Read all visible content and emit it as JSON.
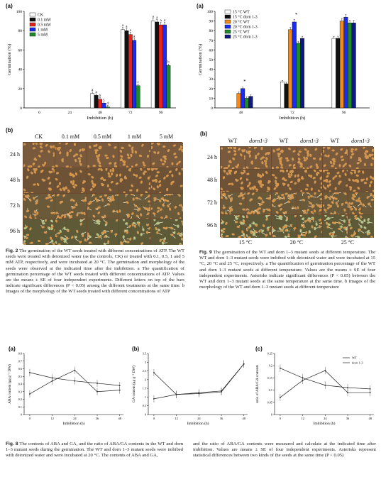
{
  "fig2": {
    "panel_a_label": "(a)",
    "panel_b_label": "(b)",
    "photo_cols": [
      "CK",
      "0.1 mM",
      "0.5 mM",
      "1 mM",
      "5 mM"
    ],
    "photo_rows": [
      "24 h",
      "48 h",
      "72 h",
      "96 h"
    ],
    "caption": {
      "title": "Fig. 2",
      "text": "The germination of the WT seeds treated with different concentrations of ATP. The WT seeds were treated with deionized water (as the controls, CK) or treated with 0.1, 0.5, 1 and 5 mM ATP, respectively, and were incubated at 20 °C. The germination and morphology of the seeds were observed at the indicated time after the imbibition. a The quantification of germination percentage of the WT seeds treated with different concentrations of ATP. Values are the means ± SE of four independent experiments. Different letters on top of the bars indicate significant differences (P < 0.05) among the different treatments at the same time. b Images of the morphology of the WT seeds treated with different concentrations of ATP"
    }
  },
  "fig9": {
    "panel_a_label": "(a)",
    "panel_b_label": "(b)",
    "photo_cols": [
      "WT",
      "dorn1-3",
      "WT",
      "dorn1-3",
      "WT",
      "dorn1-3"
    ],
    "photo_rows": [
      "24 h",
      "48 h",
      "72 h",
      "96 h"
    ],
    "temp_labels": [
      "15 °C",
      "20 °C",
      "25 °C"
    ],
    "caption": {
      "title": "Fig. 9",
      "text": "The germination of the WT and dorn 1–3 mutant seeds at different temperature. The WT and dorn 1–3 mutant seeds were imbibed with deionized water and were incubated at 15 °C, 20 °C and 25 °C, respectively. a The quantification of germination percentage of the WT and dorn 1–3 mutant seeds at different temperature. Values are the means ± SE of four independent experiments. Asterisks indicate significant differences (P < 0.05) between the WT and dorn 1–3 mutant seeds at the same temperature at the same time. b Images of the morphology of the WT and dorn 1–3 mutant seeds at different temperature"
    }
  },
  "fig8": {
    "panel_labels": [
      "(a)",
      "(b)",
      "(c)"
    ],
    "caption": {
      "title": "Fig. 8",
      "left": "The contents of ABA and GA, and the ratio of ABA/GA contents in the WT and dorn 1–3 mutant seeds during the germination. The WT and dorn 1–3 mutant seeds were imbibed with deionized water and were incubated at 20 °C. The contents of ABA and GA,",
      "right": "and the ratio of ABA/GA contents were measured and calculate at the indicated time after imbibition. Values are means ± SE of four independent experiments. Asterisks represent statistical differences between two kinds of the seeds at the same time (P < 0.05)"
    }
  },
  "chart_data": [
    {
      "id": "fig2a",
      "type": "bar",
      "xlabel": "Imbibition (h)",
      "ylabel": "Germination (%)",
      "ylim": [
        0,
        100
      ],
      "yticks": [
        0,
        20,
        40,
        60,
        80,
        100
      ],
      "categories": [
        "0",
        "24",
        "48",
        "72",
        "96"
      ],
      "legend_position": "top-left",
      "series": [
        {
          "name": "CK",
          "color": "#ffffff",
          "values": [
            0,
            0,
            15,
            81,
            90
          ],
          "letters": [
            "",
            "",
            "a",
            "a",
            "a"
          ]
        },
        {
          "name": "0.1 mM",
          "color": "#111111",
          "values": [
            0,
            0,
            13,
            80,
            89
          ],
          "letters": [
            "",
            "",
            "a",
            "a",
            "a"
          ]
        },
        {
          "name": "0.5 mM",
          "color": "#e8231e",
          "values": [
            0,
            0,
            9,
            76,
            86
          ],
          "letters": [
            "",
            "",
            "b",
            "a",
            "a"
          ]
        },
        {
          "name": "1 mM",
          "color": "#1a2cf0",
          "values": [
            0,
            0,
            5,
            70,
            86
          ],
          "letters": [
            "",
            "",
            "c",
            "a",
            "a"
          ]
        },
        {
          "name": "5 mM",
          "color": "#1f8a2a",
          "values": [
            0,
            0,
            1,
            23,
            44
          ],
          "letters": [
            "",
            "",
            "d",
            "c",
            "b"
          ]
        }
      ]
    },
    {
      "id": "fig9a",
      "type": "bar",
      "xlabel": "Imbibition (h)",
      "ylabel": "Germination (%)",
      "ylim": [
        0,
        100
      ],
      "yticks": [
        0,
        10,
        20,
        30,
        40,
        50,
        60,
        70,
        80,
        90,
        100
      ],
      "categories": [
        "48",
        "72",
        "96"
      ],
      "legend_position": "top-left",
      "series": [
        {
          "name": "15 °C WT",
          "color": "#ffffff",
          "values": [
            0,
            27,
            72
          ]
        },
        {
          "name": "15 °C dorn 1-3",
          "color": "#111111",
          "values": [
            0,
            25,
            72
          ]
        },
        {
          "name": "20 °C WT",
          "color": "#f08a1c",
          "values": [
            15,
            81,
            90
          ]
        },
        {
          "name": "20 °C dorn 1-3",
          "color": "#1a2cf0",
          "values": [
            20,
            89,
            94
          ]
        },
        {
          "name": "25 °C WT",
          "color": "#1f8a2a",
          "values": [
            10,
            67,
            88
          ]
        },
        {
          "name": "25 °C dorn 1-3",
          "color": "#0f1a80",
          "values": [
            12,
            72,
            88
          ]
        }
      ],
      "asterisks": [
        "48",
        "72"
      ]
    },
    {
      "id": "fig8a",
      "type": "line",
      "xlabel": "Imbibition (h)",
      "ylabel": "ABA content (μg g⁻¹ DW)",
      "xticks": [
        0,
        12,
        24,
        36,
        48
      ],
      "yticks": [
        0,
        0.1,
        0.2,
        0.3,
        0.4,
        0.5,
        0.6,
        0.7,
        0.8
      ],
      "xlim": [
        -3,
        50
      ],
      "ylim": [
        0,
        0.8
      ],
      "series": [
        {
          "name": "WT",
          "marker": "line",
          "x": [
            0,
            12,
            24,
            36,
            48
          ],
          "y": [
            0.55,
            0.48,
            0.44,
            0.41,
            0.38
          ]
        },
        {
          "name": "dorn 1-3",
          "marker": "line",
          "x": [
            0,
            12,
            24,
            36,
            48
          ],
          "y": [
            0.27,
            0.44,
            0.58,
            0.3,
            0.32
          ]
        }
      ]
    },
    {
      "id": "fig8b",
      "type": "line",
      "xlabel": "Imbibition (h)",
      "ylabel": "GA content (μg g⁻¹ DW)",
      "xticks": [
        0,
        12,
        24,
        36,
        48
      ],
      "yticks": [
        0,
        0.5,
        1,
        1.5,
        2,
        2.5,
        3,
        3.5
      ],
      "xlim": [
        -3,
        50
      ],
      "ylim": [
        0,
        3.5
      ],
      "series": [
        {
          "name": "WT",
          "marker": "line",
          "x": [
            0,
            12,
            24,
            36,
            48
          ],
          "y": [
            2.4,
            1.15,
            1.2,
            1.3,
            2.9
          ]
        },
        {
          "name": "dorn 1-3",
          "marker": "line",
          "x": [
            0,
            12,
            24,
            36,
            48
          ],
          "y": [
            0.9,
            1.15,
            1.25,
            1.35,
            2.9
          ]
        }
      ]
    },
    {
      "id": "fig8c",
      "type": "line",
      "xlabel": "Imbibition (h)",
      "ylabel": "ratio of ABA/GA contents",
      "xticks": [
        0,
        12,
        24,
        36,
        48
      ],
      "yticks": [
        0,
        0.05,
        0.1,
        0.15,
        0.2,
        0.25
      ],
      "xlim": [
        -3,
        50
      ],
      "ylim": [
        0,
        0.25
      ],
      "legend": [
        "WT",
        "dorn 1-3"
      ],
      "legend_position": "top-right",
      "series": [
        {
          "name": "WT",
          "marker": "line",
          "x": [
            0,
            12,
            24,
            36,
            48
          ],
          "y": [
            0.19,
            0.15,
            0.12,
            0.11,
            0.105
          ]
        },
        {
          "name": "dorn 1-3",
          "marker": "line",
          "x": [
            0,
            12,
            24,
            36,
            48
          ],
          "y": [
            0.07,
            0.14,
            0.18,
            0.09,
            0.09
          ]
        }
      ]
    }
  ],
  "colors": {
    "photo_bg": "#8a6a4a",
    "seed": "#c98a45",
    "frame": "#5a3e28"
  }
}
